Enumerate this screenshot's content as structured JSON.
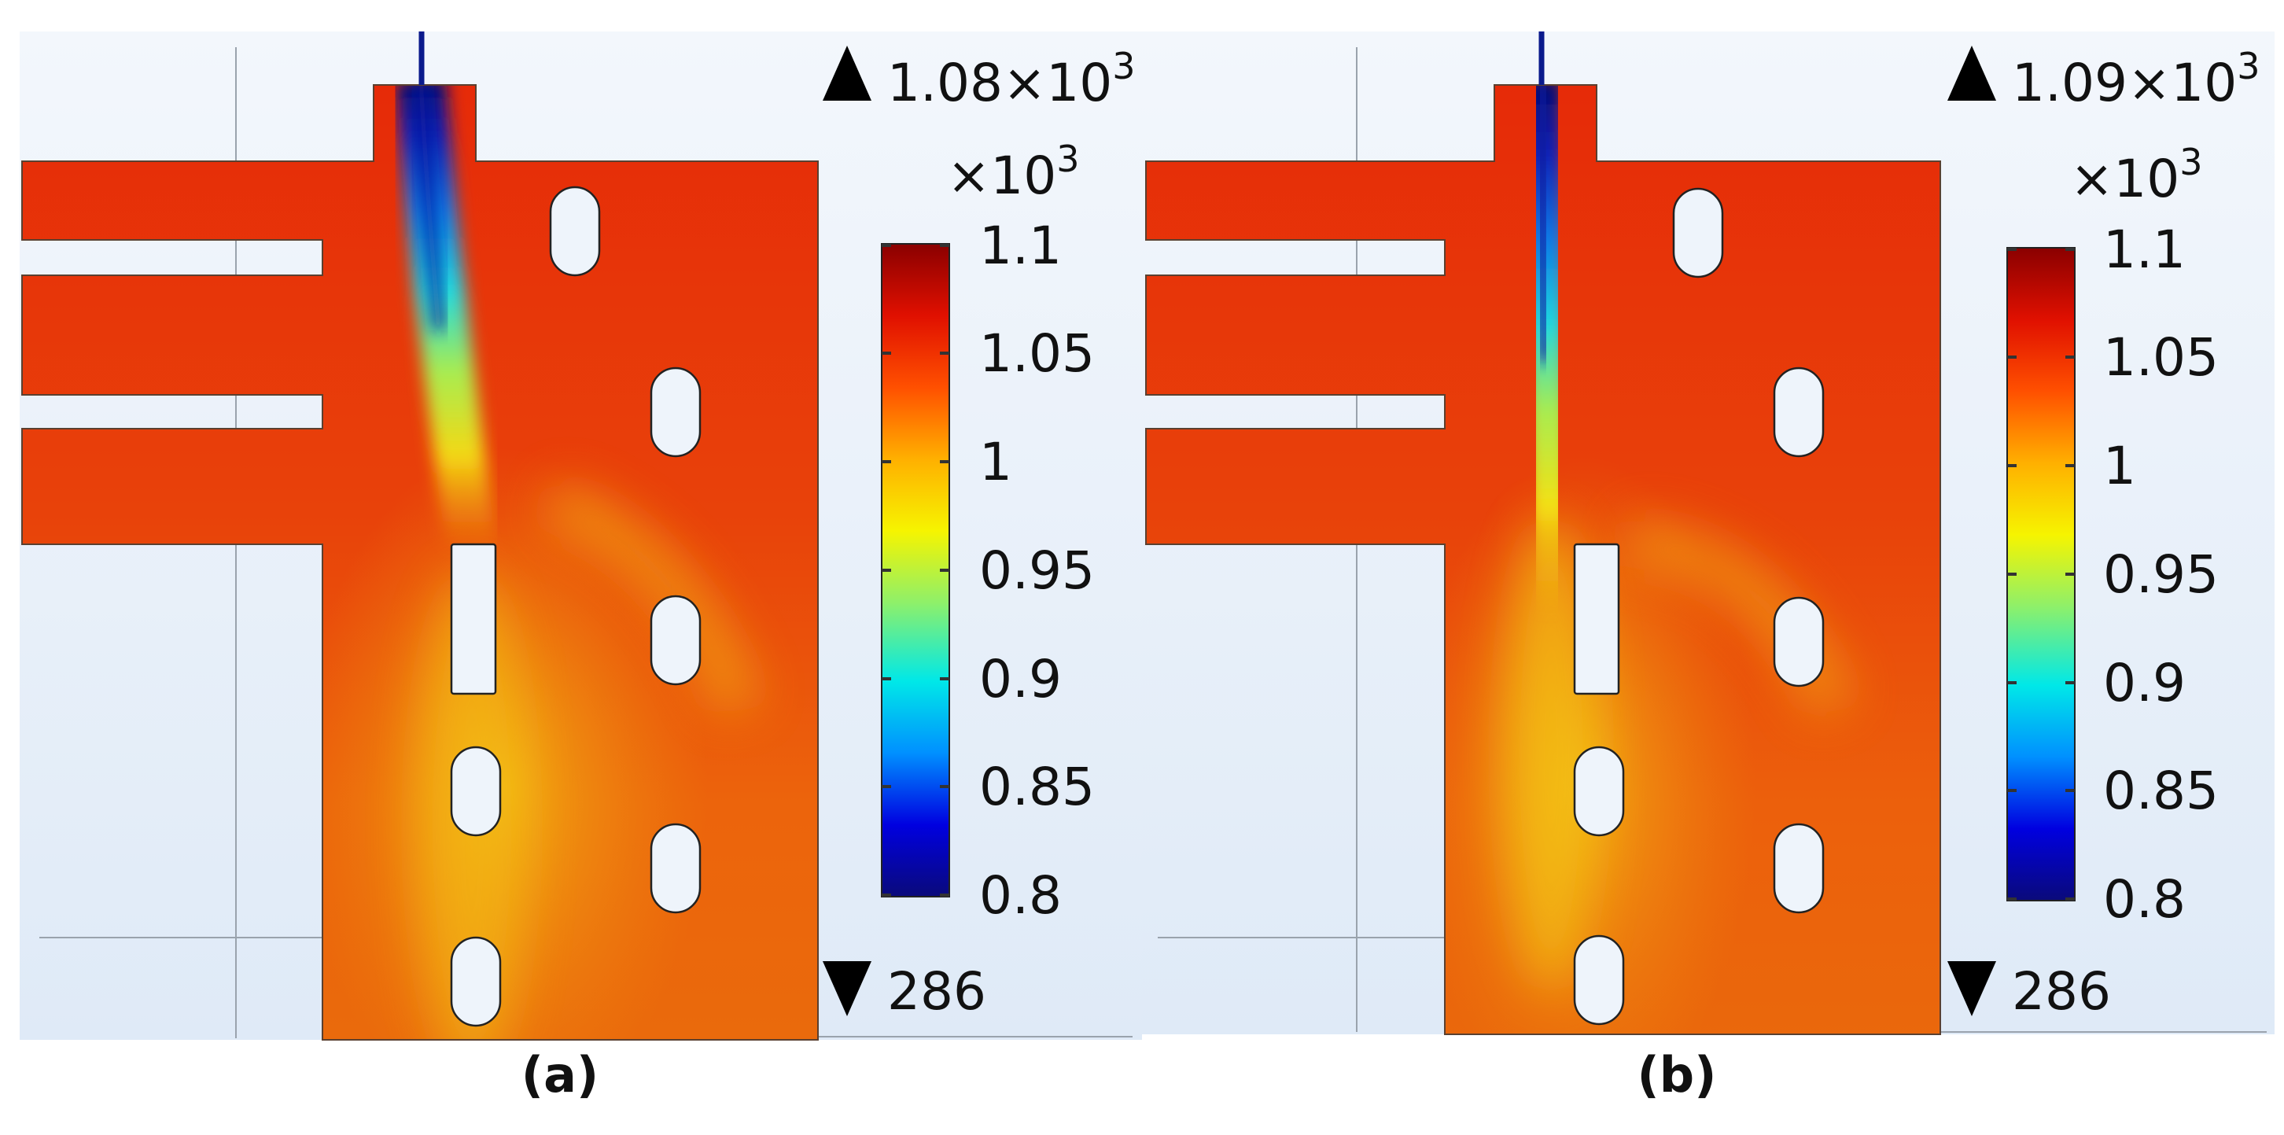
{
  "panels": [
    {
      "id": "a",
      "caption": "(a)",
      "max_label": "1.08×10",
      "max_exp": "3",
      "scale_label": "×10",
      "scale_exp": "3",
      "min_label": "286",
      "ticks": [
        "1.1",
        "1.05",
        "1",
        "0.95",
        "0.9",
        "0.85",
        "0.8"
      ]
    },
    {
      "id": "b",
      "caption": "(b)",
      "max_label": "1.09×10",
      "max_exp": "3",
      "scale_label": "×10",
      "scale_exp": "3",
      "min_label": "286",
      "ticks": [
        "1.1",
        "1.05",
        "1",
        "0.95",
        "0.9",
        "0.85",
        "0.8"
      ]
    }
  ],
  "colormap": [
    "#0a0a7a",
    "#0000e0",
    "#0090ff",
    "#00e8e8",
    "#8ef06a",
    "#f6f400",
    "#ffb000",
    "#ff5000",
    "#e01000",
    "#8a0000"
  ],
  "field_colors": {
    "hot": "#e52d0a",
    "warm": "#ea6a0c",
    "mid": "#f0a010",
    "yellow": "#f4d210",
    "cold": "#0a1a9c",
    "background": "#e0ecf8"
  }
}
